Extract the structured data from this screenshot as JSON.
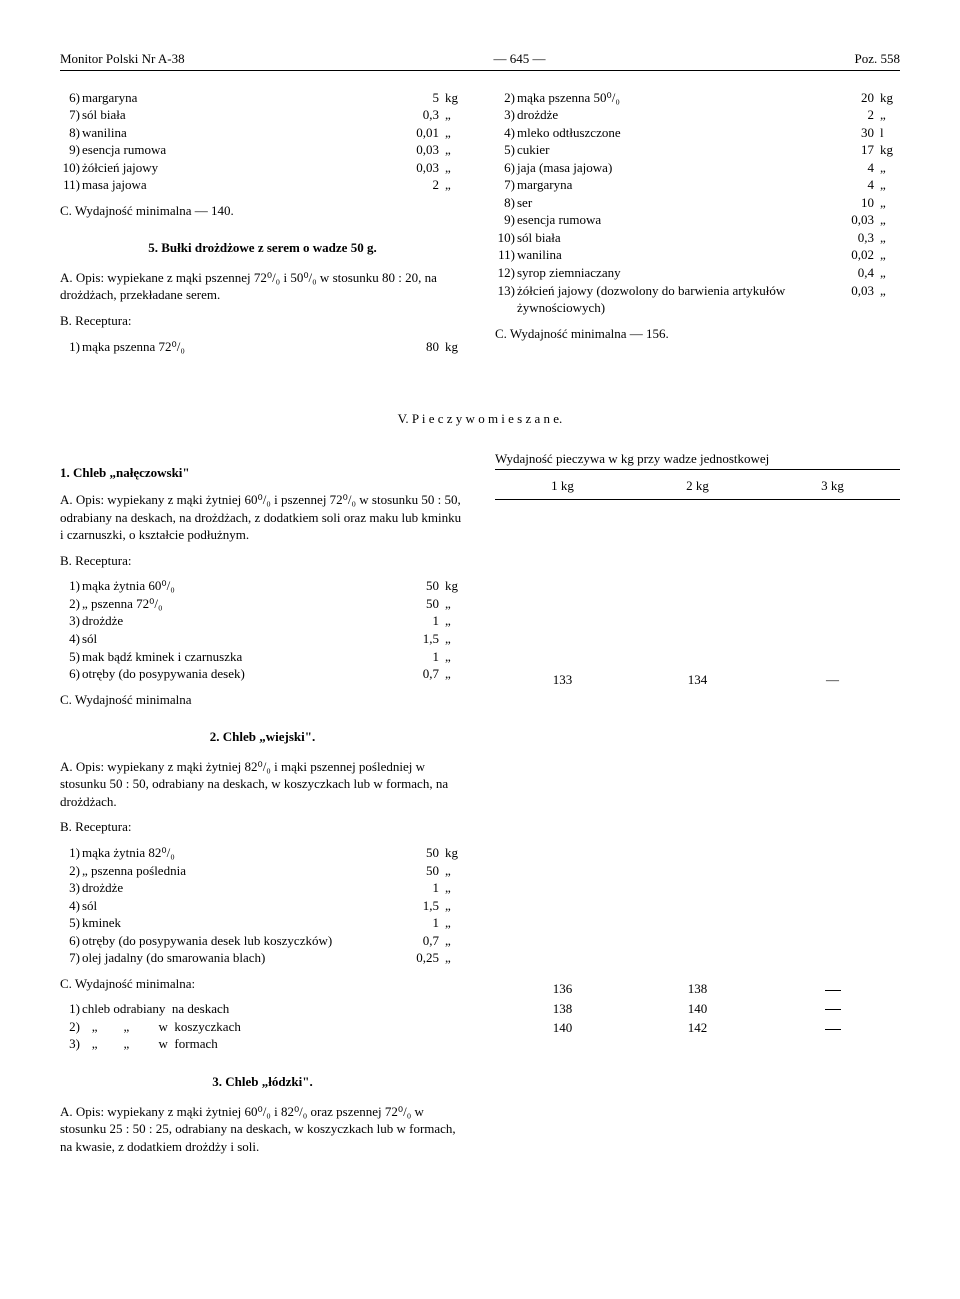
{
  "header": {
    "left": "Monitor Polski Nr A-38",
    "center": "—   645   —",
    "right": "Poz. 558"
  },
  "top": {
    "left_ingredients": [
      {
        "n": "6)",
        "name": "margaryna",
        "val": "5",
        "unit": "kg"
      },
      {
        "n": "7)",
        "name": "sól biała",
        "val": "0,3",
        "unit": "„"
      },
      {
        "n": "8)",
        "name": "wanilina",
        "val": "0,01",
        "unit": "„"
      },
      {
        "n": "9)",
        "name": "esencja rumowa",
        "val": "0,03",
        "unit": "„"
      },
      {
        "n": "10)",
        "name": "żółcień jajowy",
        "val": "0,03",
        "unit": "„"
      },
      {
        "n": "11)",
        "name": "masa jajowa",
        "val": "2",
        "unit": "„"
      }
    ],
    "left_yield_label": "C.   Wydajność minimalna — 140.",
    "left_section5_title": "5.   Bułki drożdżowe z serem o wadze 50 g.",
    "left_opis": "A.  Opis: wypiekane z mąki pszennej 72⁰/₀ i 50⁰/₀ w stosunku 80 : 20, na drożdżach, przekładane serem.",
    "left_rec_label": "B.   Receptura:",
    "left_rec_items": [
      {
        "n": "1)",
        "name": "mąka pszenna 72⁰/₀",
        "val": "80",
        "unit": "kg"
      }
    ],
    "right_ingredients": [
      {
        "n": "2)",
        "name": "mąka pszenna 50⁰/₀",
        "val": "20",
        "unit": "kg"
      },
      {
        "n": "3)",
        "name": "drożdże",
        "val": "2",
        "unit": "„"
      },
      {
        "n": "4)",
        "name": "mleko odtłuszczone",
        "val": "30",
        "unit": "l"
      },
      {
        "n": "5)",
        "name": "cukier",
        "val": "17",
        "unit": "kg"
      },
      {
        "n": "6)",
        "name": "jaja (masa jajowa)",
        "val": "4",
        "unit": "„"
      },
      {
        "n": "7)",
        "name": "margaryna",
        "val": "4",
        "unit": "„"
      },
      {
        "n": "8)",
        "name": "ser",
        "val": "10",
        "unit": "„"
      },
      {
        "n": "9)",
        "name": "esencja rumowa",
        "val": "0,03",
        "unit": "„"
      },
      {
        "n": "10)",
        "name": "sól biała",
        "val": "0,3",
        "unit": "„"
      },
      {
        "n": "11)",
        "name": "wanilina",
        "val": "0,02",
        "unit": "„"
      },
      {
        "n": "12)",
        "name": "syrop ziemniaczany",
        "val": "0,4",
        "unit": "„"
      },
      {
        "n": "13)",
        "name": "żółcień jajowy (dozwolony do barwienia artykułów żywnościowych)",
        "val": "0,03",
        "unit": "„"
      }
    ],
    "right_yield_label": "C.   Wydajność minimalna — 156."
  },
  "section_v_title": "V.   P i e c z y w o   m i e s z a n e.",
  "item1": {
    "title": "1.   Chleb „nałęczowski\"",
    "opis": "A.  Opis: wypiekany z mąki żytniej 60⁰/₀ i pszennej 72⁰/₀ w stosunku 50 : 50, odrabiany na deskach, na drożdżach, z dodatkiem soli oraz maku  lub  kminku i czarnuszki, o kształcie podłużnym.",
    "rec_label": "B.   Receptura:",
    "rec_items": [
      {
        "n": "1)",
        "name": "mąka żytnia 60⁰/₀",
        "val": "50",
        "unit": "kg"
      },
      {
        "n": "2)",
        "name": "   „    pszenna 72⁰/₀",
        "val": "50",
        "unit": "„"
      },
      {
        "n": "3)",
        "name": "drożdże",
        "val": "1",
        "unit": "„"
      },
      {
        "n": "4)",
        "name": "sól",
        "val": "1,5",
        "unit": "„"
      },
      {
        "n": "5)",
        "name": "mak bądź kminek i czarnuszka",
        "val": "1",
        "unit": "„"
      },
      {
        "n": "6)",
        "name": "otręby (do posypywania desek)",
        "val": "0,7",
        "unit": "„"
      }
    ],
    "yield_label": "C.   Wydajność minimalna"
  },
  "item2": {
    "title": "2.   Chleb „wiejski\".",
    "opis": "A.  Opis: wypiekany z mąki żytniej 82⁰/₀ i mąki pszennej pośledniej w stosunku 50 : 50, odrabiany na deskach, w koszyczkach lub w formach, na drożdżach.",
    "rec_label": "B.   Receptura:",
    "rec_items": [
      {
        "n": "1)",
        "name": "mąka żytnia 82⁰/₀",
        "val": "50",
        "unit": "kg"
      },
      {
        "n": "2)",
        "name": "   „   pszenna poślednia",
        "val": "50",
        "unit": "„"
      },
      {
        "n": "3)",
        "name": "drożdże",
        "val": "1",
        "unit": "„"
      },
      {
        "n": "4)",
        "name": "sól",
        "val": "1,5",
        "unit": "„"
      },
      {
        "n": "5)",
        "name": "kminek",
        "val": "1",
        "unit": "„"
      },
      {
        "n": "6)",
        "name": "otręby (do posypywania desek lub koszyczków)",
        "val": "0,7",
        "unit": "„"
      },
      {
        "n": "7)",
        "name": "olej jadalny (do smarowania blach)",
        "val": "0,25",
        "unit": "„"
      }
    ],
    "yield_label": "C.   Wydajność minimalna:",
    "yield_rows": [
      {
        "n": "1)",
        "name": "chleb odrabiany  na deskach"
      },
      {
        "n": "2)",
        "name": "   „        „         w  koszyczkach"
      },
      {
        "n": "3)",
        "name": "   „        „         w  formach"
      }
    ]
  },
  "item3": {
    "title": "3.   Chleb „łódzki\".",
    "opis": "A.  Opis: wypiekany z mąki żytniej 60⁰/₀ i 82⁰/₀ oraz pszennej 72⁰/₀ w stosunku 25 : 50 : 25, odrabiany na deskach, w koszyczkach lub w formach, na kwasie, z dodatkiem drożdży i soli."
  },
  "yield_table": {
    "header": "Wydajność  pieczywa  w  kg  przy  wadze  jednostkowej",
    "cols": [
      "1  kg",
      "2  kg",
      "3  kg"
    ],
    "row_item1": [
      "133",
      "134",
      "—"
    ],
    "rows_item2": [
      [
        "136",
        "138",
        "—"
      ],
      [
        "138",
        "140",
        "—"
      ],
      [
        "140",
        "142",
        "—"
      ]
    ]
  }
}
